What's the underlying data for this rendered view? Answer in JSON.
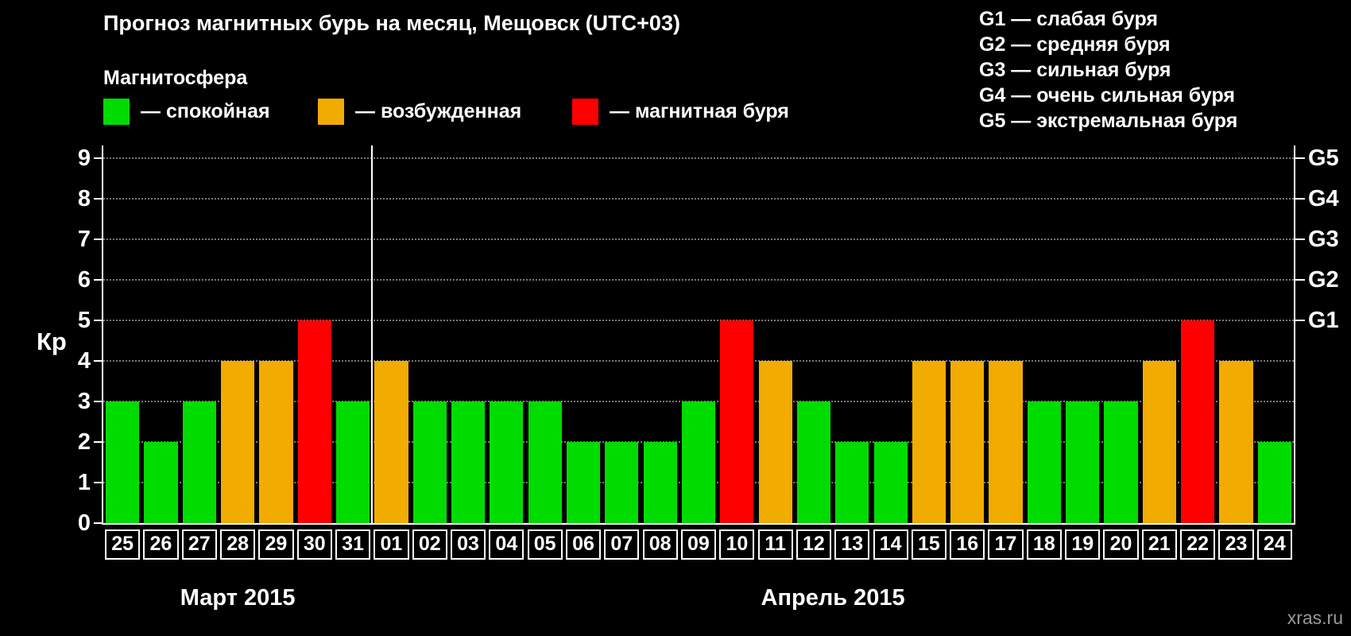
{
  "title": "Прогноз магнитных бурь на месяц, Мещовск (UTC+03)",
  "legend": {
    "title": "Магнитосфера",
    "items": [
      {
        "label": "— спокойная",
        "color": "#00dc00"
      },
      {
        "label": "— возбужденная",
        "color": "#f2ab00"
      },
      {
        "label": "— магнитная буря",
        "color": "#ff0000"
      }
    ]
  },
  "storm_scale": [
    {
      "label": "G1 — слабая буря"
    },
    {
      "label": "G2 — средняя буря"
    },
    {
      "label": "G3 — сильная буря"
    },
    {
      "label": "G4 — очень сильная буря"
    },
    {
      "label": "G5 — экстремальная буря"
    }
  ],
  "chart_data": {
    "type": "bar",
    "ylabel": "Кр",
    "ylim": [
      0,
      9
    ],
    "yticks": [
      0,
      1,
      2,
      3,
      4,
      5,
      6,
      7,
      8,
      9
    ],
    "right_ticks": [
      {
        "label": "G1",
        "value": 5
      },
      {
        "label": "G2",
        "value": 6
      },
      {
        "label": "G3",
        "value": 7
      },
      {
        "label": "G4",
        "value": 8
      },
      {
        "label": "G5",
        "value": 9
      }
    ],
    "months": [
      {
        "label": "Март 2015",
        "days": [
          "25",
          "26",
          "27",
          "28",
          "29",
          "30",
          "31"
        ],
        "values": [
          3,
          2,
          3,
          4,
          4,
          5,
          3
        ]
      },
      {
        "label": "Апрель 2015",
        "days": [
          "01",
          "02",
          "03",
          "04",
          "05",
          "06",
          "07",
          "08",
          "09",
          "10",
          "11",
          "12",
          "13",
          "14",
          "15",
          "16",
          "17",
          "18",
          "19",
          "20",
          "21",
          "22",
          "23",
          "24"
        ],
        "values": [
          4,
          3,
          3,
          3,
          3,
          2,
          2,
          2,
          3,
          5,
          4,
          3,
          2,
          2,
          4,
          4,
          4,
          3,
          3,
          3,
          4,
          5,
          4,
          2
        ]
      }
    ],
    "colors": {
      "quiet": "#00dc00",
      "active": "#f2ab00",
      "storm": "#ff0000"
    },
    "thresholds": {
      "quiet_max": 3,
      "active_max": 4
    },
    "grid": "dotted horizontal lines at Kp 1-9",
    "legend_position": "top"
  },
  "watermark": "xras.ru"
}
